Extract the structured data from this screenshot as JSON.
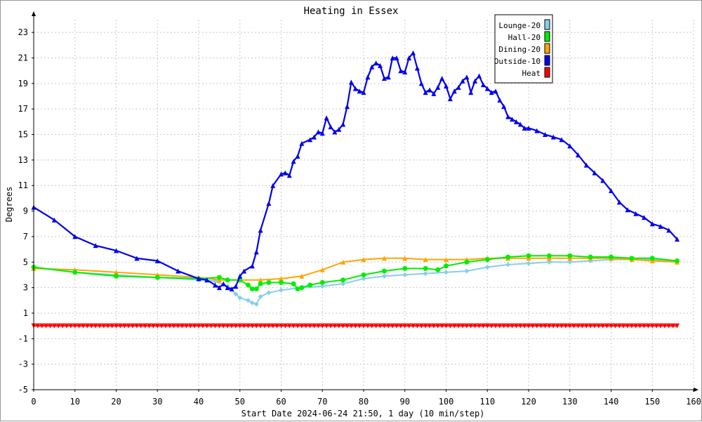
{
  "chart_data": {
    "type": "line",
    "title": "Heating in Essex",
    "xlabel": "Start Date 2024-06-24 21:50, 1 day (10 min/step)",
    "ylabel": "Degrees",
    "xlim": [
      0,
      160
    ],
    "ylim": [
      -5,
      24
    ],
    "xticks": [
      0,
      10,
      20,
      30,
      40,
      50,
      60,
      70,
      80,
      90,
      100,
      110,
      120,
      130,
      140,
      150,
      160
    ],
    "yticks": [
      -5,
      -3,
      -1,
      1,
      3,
      5,
      7,
      9,
      11,
      13,
      15,
      17,
      19,
      21,
      23
    ],
    "grid": true,
    "legend_position": "top-right",
    "series": [
      {
        "name": "Lounge-20",
        "color": "#87ceeb",
        "marker": "diamond",
        "x": [
          0,
          10,
          20,
          30,
          40,
          44,
          47,
          49,
          50,
          52,
          53,
          54,
          55,
          57,
          60,
          65,
          70,
          75,
          80,
          85,
          90,
          95,
          100,
          105,
          110,
          115,
          120,
          125,
          130,
          135,
          140,
          145,
          150,
          156
        ],
        "y": [
          4.6,
          4.2,
          4.0,
          3.8,
          3.6,
          3.5,
          3.1,
          2.5,
          2.2,
          2.0,
          1.8,
          1.7,
          2.3,
          2.6,
          2.8,
          3.0,
          3.1,
          3.3,
          3.7,
          3.9,
          4.0,
          4.1,
          4.2,
          4.3,
          4.6,
          4.8,
          4.9,
          5.0,
          5.0,
          5.1,
          5.2,
          5.2,
          5.2,
          5.1
        ]
      },
      {
        "name": "Hall-20",
        "color": "#00ee00",
        "marker": "circle",
        "x": [
          0,
          10,
          20,
          30,
          40,
          45,
          47,
          50,
          52,
          53,
          54,
          55,
          57,
          60,
          63,
          64,
          65,
          67,
          70,
          75,
          80,
          85,
          90,
          95,
          98,
          100,
          105,
          110,
          115,
          120,
          125,
          130,
          135,
          140,
          145,
          150,
          156
        ],
        "y": [
          4.6,
          4.2,
          3.9,
          3.8,
          3.7,
          3.8,
          3.6,
          3.6,
          3.2,
          2.9,
          2.9,
          3.3,
          3.4,
          3.4,
          3.3,
          2.9,
          3.0,
          3.2,
          3.4,
          3.6,
          4.0,
          4.3,
          4.5,
          4.5,
          4.4,
          4.7,
          5.0,
          5.2,
          5.4,
          5.5,
          5.5,
          5.5,
          5.4,
          5.4,
          5.3,
          5.3,
          5.1
        ]
      },
      {
        "name": "Dining-20",
        "color": "#ffa500",
        "marker": "triangle-up",
        "x": [
          0,
          10,
          20,
          30,
          40,
          45,
          50,
          55,
          60,
          65,
          70,
          75,
          80,
          85,
          90,
          95,
          100,
          105,
          110,
          115,
          120,
          125,
          130,
          135,
          140,
          145,
          150,
          156
        ],
        "y": [
          4.5,
          4.4,
          4.2,
          4.0,
          3.8,
          3.6,
          3.6,
          3.6,
          3.7,
          3.9,
          4.4,
          5.0,
          5.2,
          5.3,
          5.3,
          5.2,
          5.2,
          5.2,
          5.3,
          5.3,
          5.3,
          5.3,
          5.3,
          5.3,
          5.3,
          5.2,
          5.1,
          5.0
        ]
      },
      {
        "name": "Outside-10",
        "color": "#0000ee",
        "marker": "triangle-up",
        "x": [
          0,
          5,
          10,
          15,
          20,
          25,
          30,
          35,
          40,
          42,
          44,
          45,
          46,
          47,
          48,
          49,
          50,
          51,
          53,
          54,
          55,
          57,
          58,
          60,
          61,
          62,
          63,
          64,
          65,
          67,
          68,
          69,
          70,
          71,
          72,
          73,
          74,
          75,
          76,
          77,
          78,
          79,
          80,
          81,
          82,
          83,
          84,
          85,
          86,
          87,
          88,
          89,
          90,
          91,
          92,
          93,
          94,
          95,
          96,
          97,
          98,
          99,
          100,
          101,
          102,
          103,
          104,
          105,
          106,
          107,
          108,
          109,
          110,
          111,
          112,
          113,
          114,
          115,
          116,
          117,
          118,
          119,
          120,
          122,
          124,
          126,
          128,
          130,
          132,
          134,
          136,
          138,
          140,
          142,
          144,
          146,
          148,
          150,
          152,
          154,
          156
        ],
        "y": [
          9.3,
          8.3,
          7.0,
          6.3,
          5.9,
          5.3,
          5.1,
          4.3,
          3.7,
          3.6,
          3.2,
          3.0,
          3.3,
          3.0,
          2.9,
          3.1,
          3.9,
          4.3,
          4.7,
          5.8,
          7.5,
          9.6,
          11.0,
          11.9,
          12.0,
          11.8,
          12.9,
          13.3,
          14.3,
          14.6,
          14.8,
          15.2,
          15.1,
          16.3,
          15.6,
          15.2,
          15.4,
          15.8,
          17.2,
          19.1,
          18.6,
          18.4,
          18.3,
          19.5,
          20.3,
          20.6,
          20.4,
          19.4,
          19.5,
          21.0,
          21.0,
          20.0,
          19.9,
          21.0,
          21.4,
          20.2,
          19.0,
          18.3,
          18.5,
          18.2,
          18.7,
          19.4,
          18.8,
          17.8,
          18.4,
          18.7,
          19.2,
          19.5,
          18.3,
          19.2,
          19.6,
          18.9,
          18.6,
          18.3,
          18.4,
          17.7,
          17.2,
          16.4,
          16.2,
          16.0,
          15.8,
          15.5,
          15.5,
          15.3,
          15.0,
          14.8,
          14.6,
          14.1,
          13.4,
          12.6,
          12.0,
          11.4,
          10.6,
          9.7,
          9.1,
          8.8,
          8.5,
          8.0,
          7.8,
          7.5,
          6.8
        ]
      },
      {
        "name": "Heat",
        "color": "#ff0000",
        "marker": "triangle-down",
        "x": [
          0,
          156
        ],
        "y": [
          0,
          0
        ]
      }
    ]
  }
}
